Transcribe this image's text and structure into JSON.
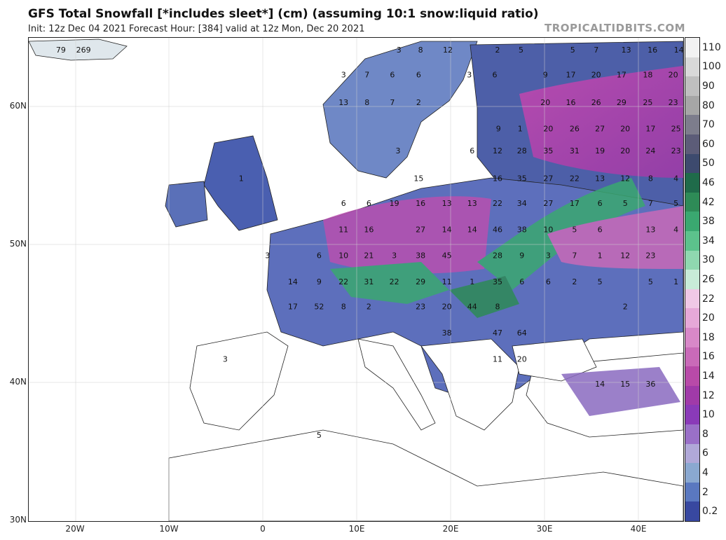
{
  "header": {
    "title": "GFS Total Snowfall [*includes sleet*] (cm) (assuming 10:1 snow:liquid ratio)",
    "subtitle": "Init: 12z Dec 04 2021   Forecast Hour: [384]   valid at 12z Mon, Dec 20 2021",
    "brand": "TROPICALTIDBITS.COM"
  },
  "map": {
    "lat_labels": [
      "60N",
      "50N",
      "40N",
      "30N"
    ],
    "lon_labels": [
      "20W",
      "10W",
      "0",
      "10E",
      "20E",
      "30E",
      "40E"
    ],
    "values": [
      {
        "v": "79",
        "lon": -21.5,
        "lat": 63.9
      },
      {
        "v": "269",
        "lon": -19.1,
        "lat": 63.9
      },
      {
        "v": "3",
        "lon": 14.5,
        "lat": 63.9
      },
      {
        "v": "8",
        "lon": 16.8,
        "lat": 63.9
      },
      {
        "v": "12",
        "lon": 19.7,
        "lat": 63.9
      },
      {
        "v": "2",
        "lon": 25,
        "lat": 63.9
      },
      {
        "v": "5",
        "lon": 27.5,
        "lat": 63.9
      },
      {
        "v": "5",
        "lon": 33,
        "lat": 63.9
      },
      {
        "v": "7",
        "lon": 35.5,
        "lat": 63.9
      },
      {
        "v": "13",
        "lon": 38.7,
        "lat": 63.9
      },
      {
        "v": "16",
        "lon": 41.5,
        "lat": 63.9
      },
      {
        "v": "14",
        "lon": 44.3,
        "lat": 63.9
      },
      {
        "v": "3",
        "lon": 8.6,
        "lat": 62.1
      },
      {
        "v": "7",
        "lon": 11.1,
        "lat": 62.1
      },
      {
        "v": "6",
        "lon": 13.8,
        "lat": 62.1
      },
      {
        "v": "6",
        "lon": 16.6,
        "lat": 62.1
      },
      {
        "v": "3",
        "lon": 22,
        "lat": 62.1
      },
      {
        "v": "6",
        "lon": 24.7,
        "lat": 62.1
      },
      {
        "v": "9",
        "lon": 30.1,
        "lat": 62.1
      },
      {
        "v": "17",
        "lon": 32.8,
        "lat": 62.1
      },
      {
        "v": "20",
        "lon": 35.5,
        "lat": 62.1
      },
      {
        "v": "17",
        "lon": 38.2,
        "lat": 62.1
      },
      {
        "v": "18",
        "lon": 41,
        "lat": 62.1
      },
      {
        "v": "20",
        "lon": 43.7,
        "lat": 62.1
      },
      {
        "v": "13",
        "lon": 8.6,
        "lat": 60.1
      },
      {
        "v": "8",
        "lon": 11.1,
        "lat": 60.1
      },
      {
        "v": "7",
        "lon": 13.8,
        "lat": 60.1
      },
      {
        "v": "2",
        "lon": 16.6,
        "lat": 60.1
      },
      {
        "v": "20",
        "lon": 30.1,
        "lat": 60.1
      },
      {
        "v": "16",
        "lon": 32.8,
        "lat": 60.1
      },
      {
        "v": "26",
        "lon": 35.5,
        "lat": 60.1
      },
      {
        "v": "29",
        "lon": 38.2,
        "lat": 60.1
      },
      {
        "v": "25",
        "lon": 41,
        "lat": 60.1
      },
      {
        "v": "23",
        "lon": 43.7,
        "lat": 60.1
      },
      {
        "v": "9",
        "lon": 25.1,
        "lat": 58.2
      },
      {
        "v": "1",
        "lon": 27.4,
        "lat": 58.2
      },
      {
        "v": "20",
        "lon": 30.4,
        "lat": 58.2
      },
      {
        "v": "26",
        "lon": 33.2,
        "lat": 58.2
      },
      {
        "v": "27",
        "lon": 35.9,
        "lat": 58.2
      },
      {
        "v": "20",
        "lon": 38.6,
        "lat": 58.2
      },
      {
        "v": "17",
        "lon": 41.3,
        "lat": 58.2
      },
      {
        "v": "25",
        "lon": 44,
        "lat": 58.2
      },
      {
        "v": "3",
        "lon": 14.4,
        "lat": 56.6
      },
      {
        "v": "6",
        "lon": 22.3,
        "lat": 56.6
      },
      {
        "v": "12",
        "lon": 25,
        "lat": 56.6
      },
      {
        "v": "28",
        "lon": 27.6,
        "lat": 56.6
      },
      {
        "v": "35",
        "lon": 30.4,
        "lat": 56.6
      },
      {
        "v": "31",
        "lon": 33.2,
        "lat": 56.6
      },
      {
        "v": "19",
        "lon": 35.9,
        "lat": 56.6
      },
      {
        "v": "20",
        "lon": 38.6,
        "lat": 56.6
      },
      {
        "v": "24",
        "lon": 41.3,
        "lat": 56.6
      },
      {
        "v": "23",
        "lon": 44,
        "lat": 56.6
      },
      {
        "v": "1",
        "lon": -2.3,
        "lat": 54.6
      },
      {
        "v": "15",
        "lon": 16.6,
        "lat": 54.6
      },
      {
        "v": "16",
        "lon": 25,
        "lat": 54.6
      },
      {
        "v": "35",
        "lon": 27.6,
        "lat": 54.6
      },
      {
        "v": "27",
        "lon": 30.4,
        "lat": 54.6
      },
      {
        "v": "22",
        "lon": 33.2,
        "lat": 54.6
      },
      {
        "v": "13",
        "lon": 35.9,
        "lat": 54.6
      },
      {
        "v": "12",
        "lon": 38.6,
        "lat": 54.6
      },
      {
        "v": "8",
        "lon": 41.3,
        "lat": 54.6
      },
      {
        "v": "4",
        "lon": 44,
        "lat": 54.6
      },
      {
        "v": "6",
        "lon": 8.6,
        "lat": 52.8
      },
      {
        "v": "6",
        "lon": 11.3,
        "lat": 52.8
      },
      {
        "v": "19",
        "lon": 14,
        "lat": 52.8
      },
      {
        "v": "16",
        "lon": 16.8,
        "lat": 52.8
      },
      {
        "v": "13",
        "lon": 19.6,
        "lat": 52.8
      },
      {
        "v": "13",
        "lon": 22.3,
        "lat": 52.8
      },
      {
        "v": "22",
        "lon": 25,
        "lat": 52.8
      },
      {
        "v": "34",
        "lon": 27.6,
        "lat": 52.8
      },
      {
        "v": "27",
        "lon": 30.4,
        "lat": 52.8
      },
      {
        "v": "17",
        "lon": 33.2,
        "lat": 52.8
      },
      {
        "v": "6",
        "lon": 35.9,
        "lat": 52.8
      },
      {
        "v": "5",
        "lon": 38.6,
        "lat": 52.8
      },
      {
        "v": "7",
        "lon": 41.3,
        "lat": 52.8
      },
      {
        "v": "5",
        "lon": 44,
        "lat": 52.8
      },
      {
        "v": "11",
        "lon": 8.6,
        "lat": 50.9
      },
      {
        "v": "16",
        "lon": 11.3,
        "lat": 50.9
      },
      {
        "v": "27",
        "lon": 16.8,
        "lat": 50.9
      },
      {
        "v": "14",
        "lon": 19.6,
        "lat": 50.9
      },
      {
        "v": "14",
        "lon": 22.3,
        "lat": 50.9
      },
      {
        "v": "46",
        "lon": 25,
        "lat": 50.9
      },
      {
        "v": "38",
        "lon": 27.6,
        "lat": 50.9
      },
      {
        "v": "10",
        "lon": 30.4,
        "lat": 50.9
      },
      {
        "v": "5",
        "lon": 33.2,
        "lat": 50.9
      },
      {
        "v": "6",
        "lon": 35.9,
        "lat": 50.9
      },
      {
        "v": "13",
        "lon": 41.3,
        "lat": 50.9
      },
      {
        "v": "4",
        "lon": 44,
        "lat": 50.9
      },
      {
        "v": "3",
        "lon": 0.5,
        "lat": 49
      },
      {
        "v": "6",
        "lon": 6,
        "lat": 49
      },
      {
        "v": "10",
        "lon": 8.6,
        "lat": 49
      },
      {
        "v": "21",
        "lon": 11.3,
        "lat": 49
      },
      {
        "v": "3",
        "lon": 14,
        "lat": 49
      },
      {
        "v": "38",
        "lon": 16.8,
        "lat": 49
      },
      {
        "v": "45",
        "lon": 19.6,
        "lat": 49
      },
      {
        "v": "28",
        "lon": 25,
        "lat": 49
      },
      {
        "v": "9",
        "lon": 27.6,
        "lat": 49
      },
      {
        "v": "3",
        "lon": 30.4,
        "lat": 49
      },
      {
        "v": "7",
        "lon": 33.2,
        "lat": 49
      },
      {
        "v": "1",
        "lon": 35.9,
        "lat": 49
      },
      {
        "v": "12",
        "lon": 38.6,
        "lat": 49
      },
      {
        "v": "23",
        "lon": 41.3,
        "lat": 49
      },
      {
        "v": "14",
        "lon": 3.2,
        "lat": 47.1
      },
      {
        "v": "9",
        "lon": 6,
        "lat": 47.1
      },
      {
        "v": "22",
        "lon": 8.6,
        "lat": 47.1
      },
      {
        "v": "31",
        "lon": 11.3,
        "lat": 47.1
      },
      {
        "v": "22",
        "lon": 14,
        "lat": 47.1
      },
      {
        "v": "29",
        "lon": 16.8,
        "lat": 47.1
      },
      {
        "v": "11",
        "lon": 19.6,
        "lat": 47.1
      },
      {
        "v": "1",
        "lon": 22.3,
        "lat": 47.1
      },
      {
        "v": "35",
        "lon": 25,
        "lat": 47.1
      },
      {
        "v": "6",
        "lon": 27.6,
        "lat": 47.1
      },
      {
        "v": "6",
        "lon": 30.4,
        "lat": 47.1
      },
      {
        "v": "2",
        "lon": 33.2,
        "lat": 47.1
      },
      {
        "v": "5",
        "lon": 35.9,
        "lat": 47.1
      },
      {
        "v": "5",
        "lon": 41.3,
        "lat": 47.1
      },
      {
        "v": "1",
        "lon": 44,
        "lat": 47.1
      },
      {
        "v": "17",
        "lon": 3.2,
        "lat": 45.3
      },
      {
        "v": "52",
        "lon": 6,
        "lat": 45.3
      },
      {
        "v": "8",
        "lon": 8.6,
        "lat": 45.3
      },
      {
        "v": "2",
        "lon": 11.3,
        "lat": 45.3
      },
      {
        "v": "23",
        "lon": 16.8,
        "lat": 45.3
      },
      {
        "v": "20",
        "lon": 19.6,
        "lat": 45.3
      },
      {
        "v": "44",
        "lon": 22.3,
        "lat": 45.3
      },
      {
        "v": "8",
        "lon": 25,
        "lat": 45.3
      },
      {
        "v": "2",
        "lon": 38.6,
        "lat": 45.3
      },
      {
        "v": "38",
        "lon": 19.6,
        "lat": 43.4
      },
      {
        "v": "47",
        "lon": 25,
        "lat": 43.4
      },
      {
        "v": "64",
        "lon": 27.6,
        "lat": 43.4
      },
      {
        "v": "3",
        "lon": -4,
        "lat": 41.5
      },
      {
        "v": "11",
        "lon": 25,
        "lat": 41.5
      },
      {
        "v": "20",
        "lon": 27.6,
        "lat": 41.5
      },
      {
        "v": "14",
        "lon": 35.9,
        "lat": 39.7
      },
      {
        "v": "15",
        "lon": 38.6,
        "lat": 39.7
      },
      {
        "v": "36",
        "lon": 41.3,
        "lat": 39.7
      },
      {
        "v": "5",
        "lon": 6,
        "lat": 36
      }
    ]
  },
  "legend": {
    "steps": [
      {
        "label": "110",
        "color": "#f2f2f2"
      },
      {
        "label": "100",
        "color": "#d9d9d9"
      },
      {
        "label": "90",
        "color": "#bfbfbf"
      },
      {
        "label": "80",
        "color": "#a6a6a6"
      },
      {
        "label": "70",
        "color": "#7d7d8c"
      },
      {
        "label": "60",
        "color": "#5c5c78"
      },
      {
        "label": "50",
        "color": "#3d4a6e"
      },
      {
        "label": "46",
        "color": "#1f6b4a"
      },
      {
        "label": "42",
        "color": "#2e8b57"
      },
      {
        "label": "38",
        "color": "#3aa870"
      },
      {
        "label": "34",
        "color": "#5cc28c"
      },
      {
        "label": "30",
        "color": "#8fd8b0"
      },
      {
        "label": "26",
        "color": "#c8ecd8"
      },
      {
        "label": "22",
        "color": "#f0c8e6"
      },
      {
        "label": "20",
        "color": "#e6a8d8"
      },
      {
        "label": "18",
        "color": "#d888c8"
      },
      {
        "label": "16",
        "color": "#c96ab8"
      },
      {
        "label": "14",
        "color": "#b84aa8"
      },
      {
        "label": "12",
        "color": "#a03aa8"
      },
      {
        "label": "10",
        "color": "#8a3ab8"
      },
      {
        "label": "8",
        "color": "#9a70c8"
      },
      {
        "label": "6",
        "color": "#b0a8d8"
      },
      {
        "label": "4",
        "color": "#8aa8d0"
      },
      {
        "label": "2",
        "color": "#5a78c0"
      },
      {
        "label": "0.2",
        "color": "#3848a0"
      }
    ]
  }
}
